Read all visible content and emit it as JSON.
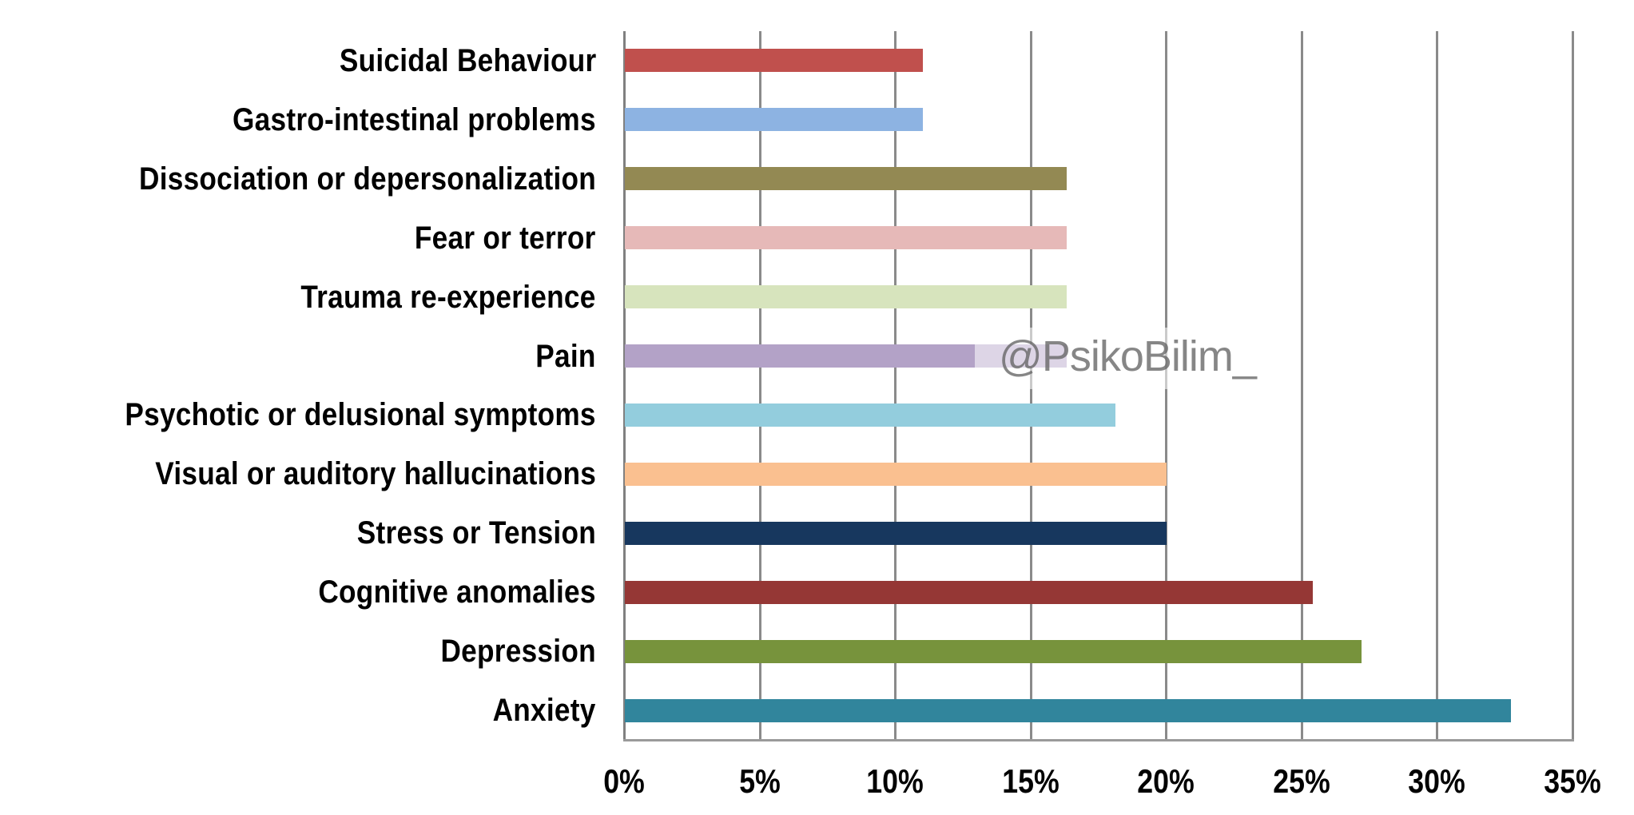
{
  "chart_data": {
    "type": "bar",
    "orientation": "horizontal",
    "title": "",
    "xlabel": "",
    "ylabel": "",
    "xlim": [
      0,
      35
    ],
    "x_ticks": [
      "0%",
      "5%",
      "10%",
      "15%",
      "20%",
      "25%",
      "30%",
      "35%"
    ],
    "grid": "vertical",
    "legend": "none",
    "unit": "%",
    "categories": [
      "Suicidal Behaviour",
      "Gastro-intestinal problems",
      "Dissociation or depersonalization",
      "Fear or terror",
      "Trauma re-experience",
      "Pain",
      "Psychotic or delusional symptoms",
      "Visual or auditory hallucinations",
      "Stress or Tension",
      "Cognitive anomalies",
      "Depression",
      "Anxiety"
    ],
    "values": [
      11.0,
      11.0,
      16.3,
      16.3,
      16.3,
      16.3,
      18.1,
      20.0,
      20.0,
      25.4,
      27.2,
      32.7
    ],
    "colors": [
      "#C0504D",
      "#8DB3E2",
      "#938953",
      "#E6B9B8",
      "#D7E4BD",
      "#B3A2C7",
      "#93CDDD",
      "#FAC090",
      "#17375E",
      "#953735",
      "#77933C",
      "#31859C"
    ]
  },
  "watermark": {
    "text": "@PsikoBilim_"
  }
}
